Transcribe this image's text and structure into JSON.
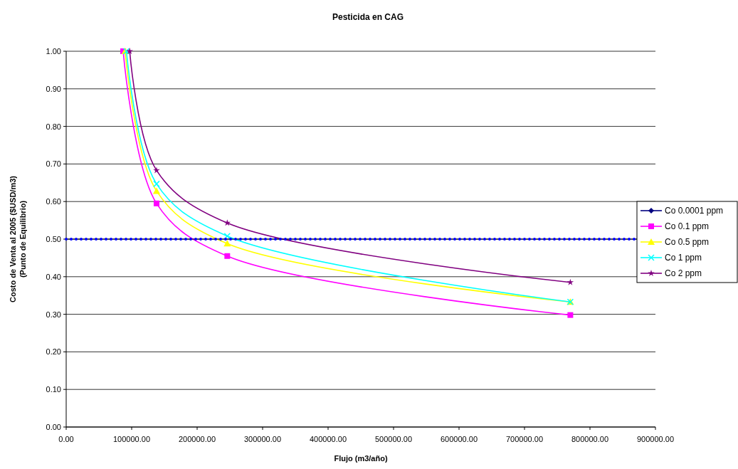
{
  "chart_data": {
    "type": "line",
    "title": "Pesticida en CAG",
    "xlabel": "Flujo (m3/año)",
    "ylabel": "Costo de Venta al 2005 ($USD/m3)\n(Punto de Equilibrio)",
    "xlim": [
      0,
      900000
    ],
    "ylim": [
      0,
      1
    ],
    "xticks": [
      {
        "value": 0,
        "label": "0.00"
      },
      {
        "value": 100000,
        "label": "100000.00"
      },
      {
        "value": 200000,
        "label": "200000.00"
      },
      {
        "value": 300000,
        "label": "300000.00"
      },
      {
        "value": 400000,
        "label": "400000.00"
      },
      {
        "value": 500000,
        "label": "500000.00"
      },
      {
        "value": 600000,
        "label": "600000.00"
      },
      {
        "value": 700000,
        "label": "700000.00"
      },
      {
        "value": 800000,
        "label": "800000.00"
      },
      {
        "value": 900000,
        "label": "900000.00"
      }
    ],
    "yticks": [
      {
        "value": 0,
        "label": "0.00"
      },
      {
        "value": 0.1,
        "label": "0.10"
      },
      {
        "value": 0.2,
        "label": "0.20"
      },
      {
        "value": 0.3,
        "label": "0.30"
      },
      {
        "value": 0.4,
        "label": "0.40"
      },
      {
        "value": 0.5,
        "label": "0.50"
      },
      {
        "value": 0.6,
        "label": "0.60"
      },
      {
        "value": 0.7,
        "label": "0.70"
      },
      {
        "value": 0.8,
        "label": "0.80"
      },
      {
        "value": 0.9,
        "label": "0.90"
      },
      {
        "value": 1,
        "label": "1.00"
      }
    ],
    "grid": "y",
    "legend": "right",
    "ref_lines": [
      {
        "axis": "y",
        "value": 0.5,
        "color": "#0000ff",
        "line_style": "dotted"
      }
    ],
    "series": [
      {
        "name": "Co 0.0001 ppm",
        "color": "#000080",
        "marker": "diamond"
      },
      {
        "name": "Co 0.1 ppm",
        "color": "#ff00ff",
        "marker": "square",
        "x": [
          87000,
          138000,
          246000,
          770000
        ],
        "values": [
          1.0,
          0.595,
          0.455,
          0.298
        ]
      },
      {
        "name": "Co 0.5 ppm",
        "color": "#ffff00",
        "marker": "triangle",
        "x": [
          90000,
          138000,
          246000,
          770000
        ],
        "values": [
          1.0,
          0.628,
          0.488,
          0.333
        ]
      },
      {
        "name": "Co 1 ppm",
        "color": "#00ffff",
        "marker": "cross",
        "x": [
          92000,
          138000,
          246000,
          770000
        ],
        "values": [
          1.0,
          0.647,
          0.508,
          0.333
        ]
      },
      {
        "name": "Co 2 ppm",
        "color": "#800080",
        "marker": "star",
        "x": [
          97000,
          138000,
          246000,
          770000
        ],
        "values": [
          1.0,
          0.683,
          0.543,
          0.385
        ]
      }
    ]
  }
}
